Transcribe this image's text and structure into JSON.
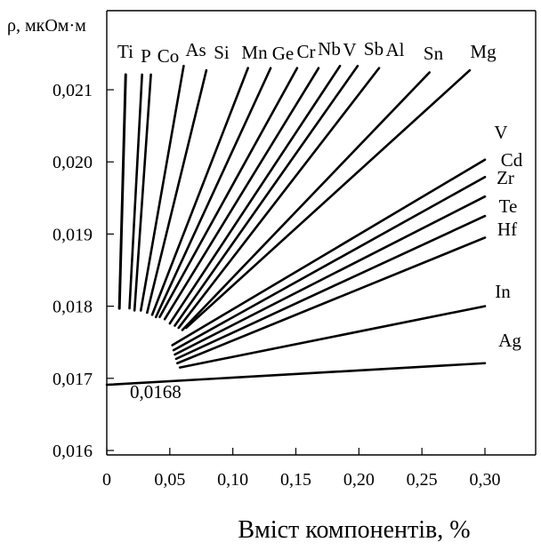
{
  "chart_data": {
    "type": "line",
    "ylabel": "ρ, мкОм·м",
    "xlabel": "Вміст компонентів, %",
    "xlim": [
      0,
      0.3
    ],
    "ylim": [
      0.016,
      0.0215
    ],
    "x_ticks": [
      "0",
      "0,05",
      "0,10",
      "0,15",
      "0,20",
      "0,25",
      "0,30"
    ],
    "y_ticks": [
      "0,016",
      "0,017",
      "0,018",
      "0,019",
      "0,020",
      "0,021"
    ],
    "annotation": "0,0168",
    "series": [
      {
        "name": "Ti",
        "x": [
          0.01,
          0.015
        ],
        "y": [
          0.01797,
          0.02121
        ]
      },
      {
        "name": "P",
        "x": [
          0.018,
          0.028
        ],
        "y": [
          0.01797,
          0.02121
        ]
      },
      {
        "name": "Co",
        "x": [
          0.022,
          0.035
        ],
        "y": [
          0.01794,
          0.02121
        ]
      },
      {
        "name": "As",
        "x": [
          0.027,
          0.061
        ],
        "y": [
          0.01794,
          0.02133
        ]
      },
      {
        "name": "Si",
        "x": [
          0.032,
          0.079
        ],
        "y": [
          0.01791,
          0.02127
        ]
      },
      {
        "name": "Mn",
        "x": [
          0.036,
          0.112
        ],
        "y": [
          0.01788,
          0.0213
        ]
      },
      {
        "name": "Ge",
        "x": [
          0.039,
          0.13
        ],
        "y": [
          0.01785,
          0.0213
        ]
      },
      {
        "name": "Cr",
        "x": [
          0.042,
          0.151
        ],
        "y": [
          0.01785,
          0.0213
        ]
      },
      {
        "name": "Nb",
        "x": [
          0.046,
          0.168
        ],
        "y": [
          0.01782,
          0.0213
        ]
      },
      {
        "name": "V",
        "x": [
          0.05,
          0.185
        ],
        "y": [
          0.01776,
          0.02133
        ]
      },
      {
        "name": "Sb",
        "x": [
          0.054,
          0.199
        ],
        "y": [
          0.01773,
          0.02133
        ]
      },
      {
        "name": "Al",
        "x": [
          0.057,
          0.216
        ],
        "y": [
          0.0177,
          0.0213
        ]
      },
      {
        "name": "Sn",
        "x": [
          0.06,
          0.256
        ],
        "y": [
          0.01767,
          0.02124
        ]
      },
      {
        "name": "Mg",
        "x": [
          0.063,
          0.288
        ],
        "y": [
          0.0177,
          0.02127
        ]
      },
      {
        "name": "V",
        "x": [
          0.052,
          0.3
        ],
        "y": [
          0.01746,
          0.02003
        ]
      },
      {
        "name": "Cd",
        "x": [
          0.053,
          0.3
        ],
        "y": [
          0.01739,
          0.01979
        ]
      },
      {
        "name": "Zr",
        "x": [
          0.054,
          0.3
        ],
        "y": [
          0.01733,
          0.01952
        ]
      },
      {
        "name": "Te",
        "x": [
          0.055,
          0.3
        ],
        "y": [
          0.01727,
          0.01925
        ]
      },
      {
        "name": "Hf",
        "x": [
          0.056,
          0.3
        ],
        "y": [
          0.01721,
          0.01895
        ]
      },
      {
        "name": "In",
        "x": [
          0.058,
          0.3
        ],
        "y": [
          0.01715,
          0.018
        ]
      },
      {
        "name": "Ag",
        "x": [
          0.0,
          0.3
        ],
        "y": [
          0.01691,
          0.01721
        ]
      }
    ]
  }
}
